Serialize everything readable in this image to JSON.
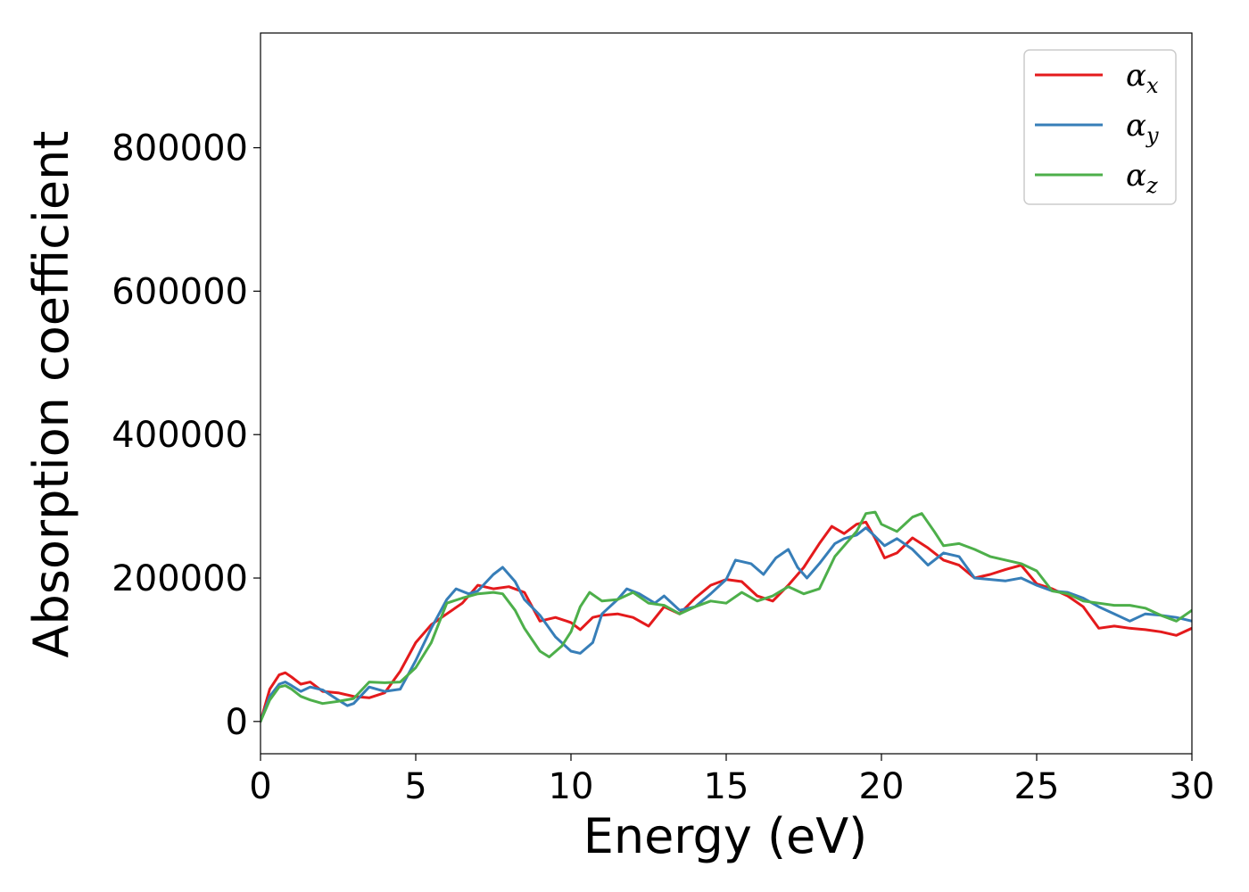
{
  "chart_data": {
    "type": "line",
    "title": "",
    "xlabel": "Energy (eV)",
    "ylabel": "Absorption coefficient",
    "xlim": [
      0,
      30
    ],
    "ylim": [
      -45000,
      960000
    ],
    "x_ticks": [
      0,
      5,
      10,
      15,
      20,
      25,
      30
    ],
    "y_ticks": [
      0,
      200000,
      400000,
      600000,
      800000
    ],
    "x_tick_labels": [
      "0",
      "5",
      "10",
      "15",
      "20",
      "25",
      "30"
    ],
    "y_tick_labels": [
      "0",
      "200000",
      "400000",
      "600000",
      "800000"
    ],
    "grid": false,
    "legend_position": "top-right",
    "series": [
      {
        "name": "α",
        "subscript": "x",
        "color": "#e41a1c",
        "x": [
          0,
          0.3,
          0.6,
          0.8,
          1.0,
          1.3,
          1.6,
          2.0,
          2.5,
          3.0,
          3.5,
          4.0,
          4.5,
          5.0,
          5.5,
          6.0,
          6.5,
          7.0,
          7.5,
          8.0,
          8.5,
          9.0,
          9.5,
          10.0,
          10.3,
          10.7,
          11.0,
          11.5,
          12.0,
          12.5,
          13.0,
          13.5,
          14.0,
          14.5,
          15.0,
          15.5,
          16.0,
          16.5,
          17.0,
          17.5,
          18.0,
          18.4,
          18.8,
          19.2,
          19.5,
          19.8,
          20.1,
          20.5,
          21.0,
          21.5,
          22.0,
          22.5,
          23.0,
          23.5,
          24.0,
          24.5,
          25.0,
          25.5,
          26.0,
          26.5,
          27.0,
          27.5,
          28.0,
          28.5,
          29.0,
          29.5,
          30.0
        ],
        "y": [
          0,
          45000,
          65000,
          68000,
          62000,
          52000,
          55000,
          42000,
          40000,
          35000,
          33000,
          40000,
          70000,
          110000,
          135000,
          150000,
          165000,
          190000,
          185000,
          188000,
          180000,
          140000,
          145000,
          138000,
          128000,
          145000,
          148000,
          150000,
          145000,
          133000,
          160000,
          150000,
          172000,
          190000,
          198000,
          195000,
          175000,
          168000,
          190000,
          215000,
          248000,
          272000,
          262000,
          275000,
          278000,
          255000,
          228000,
          235000,
          256000,
          242000,
          225000,
          218000,
          200000,
          205000,
          212000,
          218000,
          192000,
          185000,
          175000,
          160000,
          130000,
          133000,
          130000,
          128000,
          125000,
          120000,
          130000
        ]
      },
      {
        "name": "α",
        "subscript": "y",
        "color": "#377eb8",
        "x": [
          0,
          0.3,
          0.6,
          0.8,
          1.0,
          1.3,
          1.6,
          2.0,
          2.5,
          2.8,
          3.0,
          3.5,
          4.0,
          4.5,
          5.0,
          5.5,
          6.0,
          6.3,
          6.7,
          7.0,
          7.5,
          7.8,
          8.2,
          8.5,
          9.0,
          9.5,
          10.0,
          10.3,
          10.7,
          11.0,
          11.5,
          11.8,
          12.2,
          12.7,
          13.0,
          13.5,
          14.0,
          14.5,
          15.0,
          15.3,
          15.8,
          16.2,
          16.6,
          17.0,
          17.3,
          17.6,
          18.0,
          18.5,
          18.8,
          19.2,
          19.5,
          19.8,
          20.1,
          20.5,
          21.0,
          21.5,
          22.0,
          22.5,
          23.0,
          23.5,
          24.0,
          24.5,
          25.0,
          25.5,
          26.0,
          26.5,
          27.0,
          27.5,
          28.0,
          28.5,
          29.0,
          29.5,
          30.0
        ],
        "y": [
          0,
          35000,
          52000,
          55000,
          50000,
          42000,
          48000,
          44000,
          30000,
          22000,
          25000,
          48000,
          42000,
          45000,
          85000,
          130000,
          170000,
          185000,
          178000,
          182000,
          205000,
          215000,
          195000,
          170000,
          148000,
          118000,
          98000,
          95000,
          110000,
          150000,
          170000,
          185000,
          178000,
          165000,
          175000,
          155000,
          160000,
          178000,
          198000,
          225000,
          220000,
          205000,
          228000,
          240000,
          215000,
          200000,
          220000,
          248000,
          255000,
          260000,
          270000,
          258000,
          245000,
          255000,
          240000,
          218000,
          235000,
          230000,
          200000,
          198000,
          196000,
          200000,
          190000,
          182000,
          180000,
          172000,
          160000,
          150000,
          140000,
          150000,
          148000,
          145000,
          140000
        ]
      },
      {
        "name": "α",
        "subscript": "z",
        "color": "#4daf4a",
        "x": [
          0,
          0.3,
          0.6,
          0.8,
          1.0,
          1.3,
          1.6,
          2.0,
          2.5,
          3.0,
          3.5,
          4.0,
          4.5,
          5.0,
          5.5,
          6.0,
          6.5,
          7.0,
          7.5,
          7.8,
          8.2,
          8.5,
          9.0,
          9.3,
          9.7,
          10.0,
          10.3,
          10.6,
          11.0,
          11.5,
          12.0,
          12.5,
          13.0,
          13.5,
          14.0,
          14.5,
          15.0,
          15.5,
          16.0,
          16.5,
          17.0,
          17.5,
          18.0,
          18.5,
          18.9,
          19.2,
          19.5,
          19.8,
          20.0,
          20.5,
          21.0,
          21.3,
          21.7,
          22.0,
          22.5,
          23.0,
          23.5,
          24.0,
          24.5,
          25.0,
          25.5,
          26.0,
          26.5,
          27.0,
          27.5,
          28.0,
          28.5,
          29.0,
          29.5,
          30.0
        ],
        "y": [
          0,
          30000,
          48000,
          50000,
          45000,
          35000,
          30000,
          25000,
          28000,
          32000,
          55000,
          54000,
          55000,
          75000,
          110000,
          165000,
          172000,
          178000,
          180000,
          178000,
          155000,
          130000,
          98000,
          90000,
          105000,
          125000,
          160000,
          180000,
          168000,
          170000,
          180000,
          165000,
          162000,
          150000,
          160000,
          168000,
          165000,
          180000,
          168000,
          175000,
          188000,
          178000,
          185000,
          230000,
          250000,
          265000,
          290000,
          292000,
          275000,
          265000,
          285000,
          290000,
          265000,
          245000,
          248000,
          240000,
          230000,
          225000,
          220000,
          210000,
          182000,
          178000,
          168000,
          165000,
          162000,
          162000,
          158000,
          148000,
          140000,
          155000
        ]
      }
    ]
  }
}
